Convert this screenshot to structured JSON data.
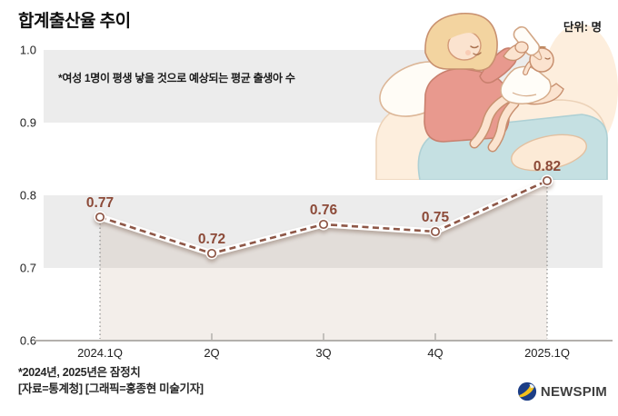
{
  "header": {
    "title": "합계출산율 추이",
    "unit_label": "단위: 명"
  },
  "annotation": "*여성 1명이 평생 낳을 것으로 예상되는 평균 출생아 수",
  "chart_data": {
    "type": "line",
    "title": "합계출산율 추이",
    "unit": "명",
    "categories": [
      "2024.1Q",
      "2Q",
      "3Q",
      "4Q",
      "2025.1Q"
    ],
    "values": [
      0.77,
      0.72,
      0.76,
      0.75,
      0.82
    ],
    "y_ticks": [
      "1.0",
      "0.9",
      "0.8",
      "0.7",
      "0.6"
    ],
    "ylim": [
      0.6,
      1.0
    ],
    "line_style": "dashed",
    "grid": "alternating-horizontal-bands",
    "legend": "none",
    "colors": {
      "line": "#8e5747",
      "line_casing": "#ffffff",
      "value_label": "#8c4a38",
      "band": "#ececec",
      "area_fill": "rgba(172,132,105,0.14)",
      "axis": "#b3b0ac",
      "guide_dotted": "#8d8d8d"
    }
  },
  "footer": {
    "note1": "*2024년, 2025년은 잠정치",
    "note2": "[자료=통계청] [그래픽=홍종현 미술기자]"
  },
  "logo": {
    "text": "NEWSPIM"
  },
  "illustration": {
    "name": "mother-bottle-feeding-baby"
  }
}
